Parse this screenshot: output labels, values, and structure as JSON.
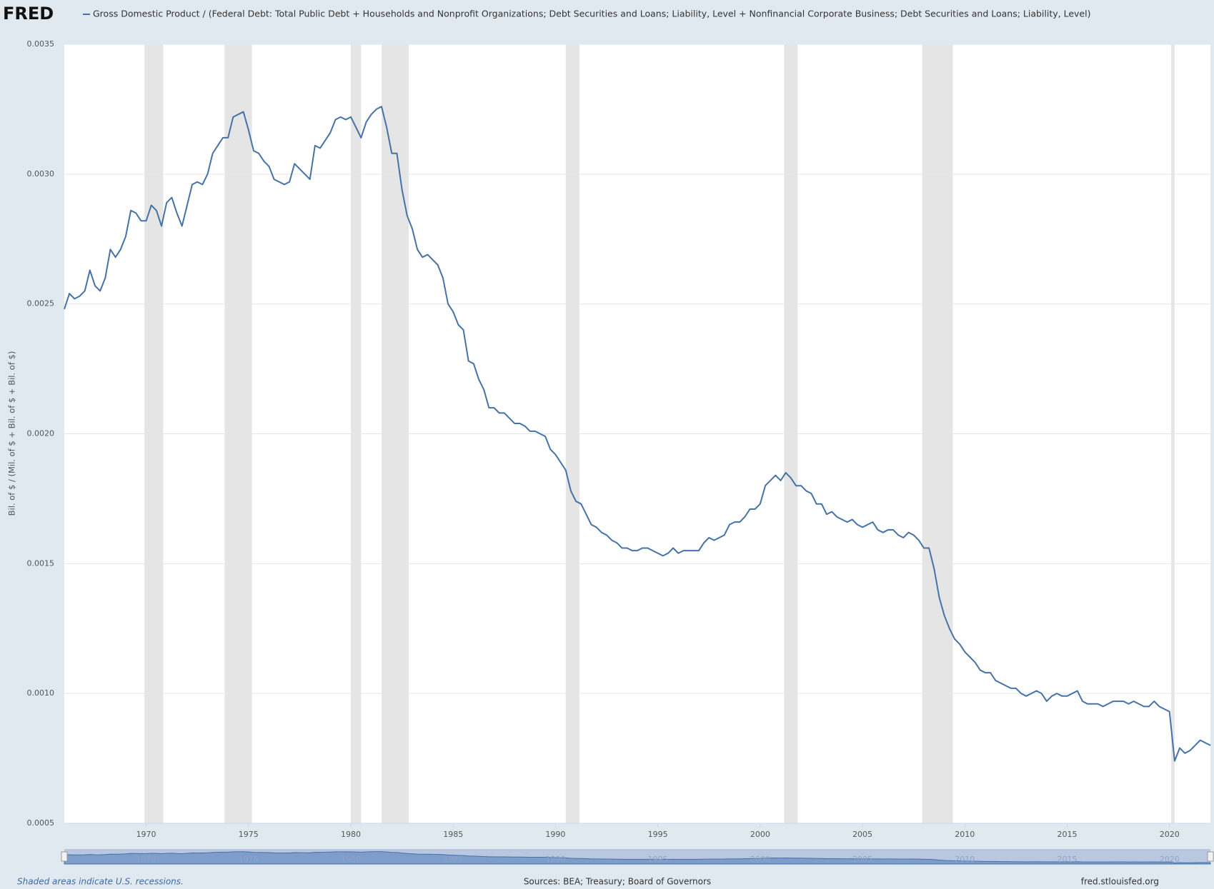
{
  "logo": "FRED",
  "chart_data": {
    "type": "line",
    "ylabel": "Bil. of $ / (Mil. of $ + Bil. of $ + Bil. of $)",
    "xlim": [
      1966,
      2022
    ],
    "xticks": [
      1970,
      1975,
      1980,
      1985,
      1990,
      1995,
      2000,
      2005,
      2010,
      2015,
      2020
    ],
    "ylim": [
      0.0005,
      0.0035
    ],
    "yticks": [
      0.0005,
      {
        "value": 0.001,
        "label": "0.0010"
      },
      0.0015,
      {
        "value": 0.002,
        "label": "0.0020"
      },
      0.0025,
      {
        "value": 0.003,
        "label": "0.0030"
      },
      0.0035
    ],
    "grid": true,
    "recessions": [
      [
        1969.917,
        1970.833
      ],
      [
        1973.833,
        1975.167
      ],
      [
        1980.0,
        1980.5
      ],
      [
        1981.5,
        1982.833
      ],
      [
        1990.5,
        1991.167
      ],
      [
        2001.167,
        2001.833
      ],
      [
        2007.917,
        2009.417
      ],
      [
        2020.083,
        2020.25
      ]
    ],
    "x": [
      1966,
      1966.25,
      1966.5,
      1966.75,
      1967,
      1967.25,
      1967.5,
      1967.75,
      1968,
      1968.25,
      1968.5,
      1968.75,
      1969,
      1969.25,
      1969.5,
      1969.75,
      1970,
      1970.25,
      1970.5,
      1970.75,
      1971,
      1971.25,
      1971.5,
      1971.75,
      1972,
      1972.25,
      1972.5,
      1972.75,
      1973,
      1973.25,
      1973.5,
      1973.75,
      1974,
      1974.25,
      1974.5,
      1974.75,
      1975,
      1975.25,
      1975.5,
      1975.75,
      1976,
      1976.25,
      1976.5,
      1976.75,
      1977,
      1977.25,
      1977.5,
      1977.75,
      1978,
      1978.25,
      1978.5,
      1978.75,
      1979,
      1979.25,
      1979.5,
      1979.75,
      1980,
      1980.25,
      1980.5,
      1980.75,
      1981,
      1981.25,
      1981.5,
      1981.75,
      1982,
      1982.25,
      1982.5,
      1982.75,
      1983,
      1983.25,
      1983.5,
      1983.75,
      1984,
      1984.25,
      1984.5,
      1984.75,
      1985,
      1985.25,
      1985.5,
      1985.75,
      1986,
      1986.25,
      1986.5,
      1986.75,
      1987,
      1987.25,
      1987.5,
      1987.75,
      1988,
      1988.25,
      1988.5,
      1988.75,
      1989,
      1989.25,
      1989.5,
      1989.75,
      1990,
      1990.25,
      1990.5,
      1990.75,
      1991,
      1991.25,
      1991.5,
      1991.75,
      1992,
      1992.25,
      1992.5,
      1992.75,
      1993,
      1993.25,
      1993.5,
      1993.75,
      1994,
      1994.25,
      1994.5,
      1994.75,
      1995,
      1995.25,
      1995.5,
      1995.75,
      1996,
      1996.25,
      1996.5,
      1996.75,
      1997,
      1997.25,
      1997.5,
      1997.75,
      1998,
      1998.25,
      1998.5,
      1998.75,
      1999,
      1999.25,
      1999.5,
      1999.75,
      2000,
      2000.25,
      2000.5,
      2000.75,
      2001,
      2001.25,
      2001.5,
      2001.75,
      2002,
      2002.25,
      2002.5,
      2002.75,
      2003,
      2003.25,
      2003.5,
      2003.75,
      2004,
      2004.25,
      2004.5,
      2004.75,
      2005,
      2005.25,
      2005.5,
      2005.75,
      2006,
      2006.25,
      2006.5,
      2006.75,
      2007,
      2007.25,
      2007.5,
      2007.75,
      2008,
      2008.25,
      2008.5,
      2008.75,
      2009,
      2009.25,
      2009.5,
      2009.75,
      2010,
      2010.25,
      2010.5,
      2010.75,
      2011,
      2011.25,
      2011.5,
      2011.75,
      2012,
      2012.25,
      2012.5,
      2012.75,
      2013,
      2013.25,
      2013.5,
      2013.75,
      2014,
      2014.25,
      2014.5,
      2014.75,
      2015,
      2015.25,
      2015.5,
      2015.75,
      2016,
      2016.25,
      2016.5,
      2016.75,
      2017,
      2017.25,
      2017.5,
      2017.75,
      2018,
      2018.25,
      2018.5,
      2018.75,
      2019,
      2019.25,
      2019.5,
      2019.75,
      2020,
      2020.25,
      2020.5,
      2020.75,
      2021,
      2021.25,
      2021.5,
      2021.75,
      2022
    ],
    "series": [
      {
        "name": "Gross Domestic Product / (Federal Debt: Total Public Debt + Households and Nonprofit Organizations; Debt Securities and Loans; Liability, Level + Nonfinancial Corporate Business; Debt Securities and Loans; Liability, Level)",
        "color": "#4572a7",
        "values": [
          0.00248,
          0.00254,
          0.00252,
          0.00253,
          0.00255,
          0.00263,
          0.00257,
          0.00255,
          0.0026,
          0.00271,
          0.00268,
          0.00271,
          0.00276,
          0.00286,
          0.00285,
          0.00282,
          0.00282,
          0.00288,
          0.00286,
          0.0028,
          0.00289,
          0.00291,
          0.00285,
          0.0028,
          0.00288,
          0.00296,
          0.00297,
          0.00296,
          0.003,
          0.00308,
          0.00311,
          0.00314,
          0.00314,
          0.00322,
          0.00323,
          0.00324,
          0.00317,
          0.00309,
          0.00308,
          0.00305,
          0.00303,
          0.00298,
          0.00297,
          0.00296,
          0.00297,
          0.00304,
          0.00302,
          0.003,
          0.00298,
          0.00311,
          0.0031,
          0.00313,
          0.00316,
          0.00321,
          0.00322,
          0.00321,
          0.00322,
          0.00318,
          0.00314,
          0.0032,
          0.00323,
          0.00325,
          0.00326,
          0.00318,
          0.00308,
          0.00308,
          0.00294,
          0.00284,
          0.00279,
          0.00271,
          0.00268,
          0.00269,
          0.00267,
          0.00265,
          0.0026,
          0.0025,
          0.00247,
          0.00242,
          0.0024,
          0.00228,
          0.00227,
          0.00221,
          0.00217,
          0.0021,
          0.0021,
          0.00208,
          0.00208,
          0.00206,
          0.00204,
          0.00204,
          0.00203,
          0.00201,
          0.00201,
          0.002,
          0.00199,
          0.00194,
          0.00192,
          0.00189,
          0.00186,
          0.00178,
          0.00174,
          0.00173,
          0.00169,
          0.00165,
          0.00164,
          0.00162,
          0.00161,
          0.00159,
          0.00158,
          0.00156,
          0.00156,
          0.00155,
          0.00155,
          0.00156,
          0.00156,
          0.00155,
          0.00154,
          0.00153,
          0.00154,
          0.00156,
          0.00154,
          0.00155,
          0.00155,
          0.00155,
          0.00155,
          0.00158,
          0.0016,
          0.00159,
          0.0016,
          0.00161,
          0.00165,
          0.00166,
          0.00166,
          0.00168,
          0.00171,
          0.00171,
          0.00173,
          0.0018,
          0.00182,
          0.00184,
          0.00182,
          0.00185,
          0.00183,
          0.0018,
          0.0018,
          0.00178,
          0.00177,
          0.00173,
          0.00173,
          0.00169,
          0.0017,
          0.00168,
          0.00167,
          0.00166,
          0.00167,
          0.00165,
          0.00164,
          0.00165,
          0.00166,
          0.00163,
          0.00162,
          0.00163,
          0.00163,
          0.00161,
          0.0016,
          0.00162,
          0.00161,
          0.00159,
          0.00156,
          0.00156,
          0.00148,
          0.00137,
          0.0013,
          0.00125,
          0.00121,
          0.00119,
          0.00116,
          0.00114,
          0.00112,
          0.00109,
          0.00108,
          0.00108,
          0.00105,
          0.00104,
          0.00103,
          0.00102,
          0.00102,
          0.001,
          0.00099,
          0.001,
          0.00101,
          0.001,
          0.00097,
          0.00099,
          0.001,
          0.00099,
          0.00099,
          0.001,
          0.00101,
          0.00097,
          0.00096,
          0.00096,
          0.00096,
          0.00095,
          0.00096,
          0.00097,
          0.00097,
          0.00097,
          0.00096,
          0.00097,
          0.00096,
          0.00095,
          0.00095,
          0.00097,
          0.00095,
          0.00094,
          0.00093,
          0.00074,
          0.00079,
          0.00077,
          0.00078,
          0.0008,
          0.00082,
          0.00081,
          0.0008
        ]
      }
    ]
  },
  "footer": {
    "note": "Shaded areas indicate U.S. recessions.",
    "sources": "Sources: BEA; Treasury; Board of Governors",
    "site": "fred.stlouisfed.org"
  }
}
